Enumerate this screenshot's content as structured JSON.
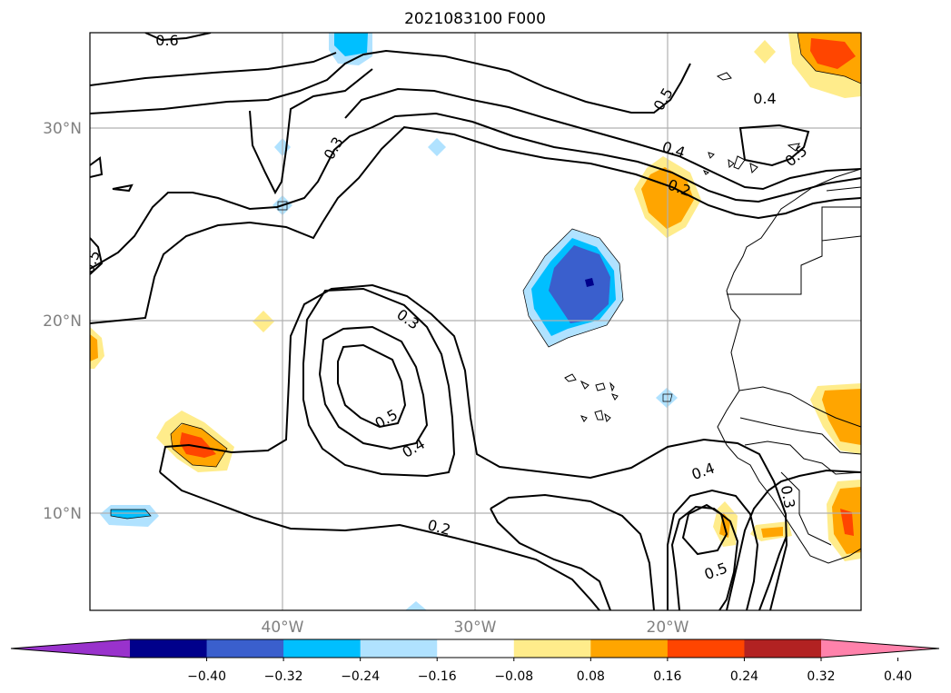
{
  "title": "2021083100 F000",
  "axes": {
    "x_ticks": [
      "40°W",
      "30°W",
      "20°W"
    ],
    "y_ticks": [
      "30°N",
      "20°N",
      "10°N"
    ]
  },
  "contour_labels": [
    "0.6",
    "0.5",
    "0.4",
    "0.3",
    "0.2",
    "0.4",
    "0.3",
    "0.5",
    "0.4",
    "0.2",
    "0.4",
    "0.3",
    "0.5",
    "0.5"
  ],
  "colorbar": {
    "colors": [
      "#9932cc",
      "#00008b",
      "#3a5fcd",
      "#00bfff",
      "#b0e2ff",
      "#ffffff",
      "#ffec8b",
      "#ffa500",
      "#ff4500",
      "#b22222",
      "#ff82ab"
    ],
    "ticks": [
      "−0.40",
      "−0.32",
      "−0.24",
      "−0.16",
      "−0.08",
      "0.08",
      "0.16",
      "0.24",
      "0.32",
      "0.40"
    ]
  }
}
